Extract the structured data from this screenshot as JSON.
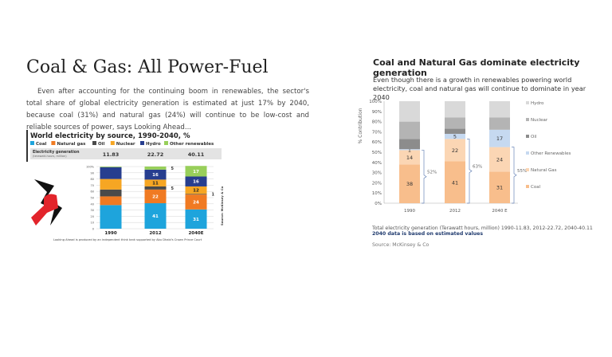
{
  "article": {
    "title": "Coal & Gas: All Power-Fuel",
    "body": "Even after accounting for the continuing boom in renewables, the sector's total share of global electricity generation is estimated at just 17% by 2040, because coal (31%) and natural gas (24%) will continue to be low-cost and reliable sources of power, says Looking Ahead..."
  },
  "chart_data": [
    {
      "type": "bar",
      "stacked": true,
      "title": "World electricity by source, 1990-2040, %",
      "categories": [
        "1990",
        "2012",
        "2040E"
      ],
      "generation_label": "Electricity generation",
      "generation_sublabel": "(terawatt-hours, million)",
      "generation": [
        "11.83",
        "22.72",
        "40.11"
      ],
      "ylim": [
        0,
        100
      ],
      "yticks": [
        "0",
        "10",
        "20",
        "30",
        "40",
        "50",
        "60",
        "70",
        "80",
        "90",
        "100%"
      ],
      "series": [
        {
          "name": "Coal",
          "color": "#1ea4dc",
          "values": [
            38,
            41,
            31
          ],
          "labels": [
            "",
            "41",
            "31"
          ]
        },
        {
          "name": "Natural gas",
          "color": "#f07a22",
          "values": [
            14,
            22,
            24
          ],
          "labels": [
            "",
            "22",
            "24"
          ]
        },
        {
          "name": "Oil",
          "color": "#4a4a4a",
          "values": [
            11,
            5,
            1
          ],
          "labels": [
            "",
            "5",
            "1"
          ]
        },
        {
          "name": "Nuclear",
          "color": "#f6a623",
          "values": [
            17,
            11,
            12
          ],
          "labels": [
            "",
            "11",
            "12"
          ]
        },
        {
          "name": "Hydro",
          "color": "#273e8f",
          "values": [
            19,
            16,
            16
          ],
          "labels": [
            "",
            "16",
            "16"
          ]
        },
        {
          "name": "Other renewables",
          "color": "#98cf5a",
          "values": [
            1,
            5,
            17
          ],
          "labels": [
            "",
            "5",
            "17"
          ]
        }
      ],
      "source": "Source: McKinsey & Co",
      "footnote": "Looking Ahead is produced by an independent think tank supported by Abu Dhabi's Crown Prince Court"
    },
    {
      "type": "bar",
      "stacked": true,
      "title": "Coal and Natural Gas dominate electricity generation",
      "subtitle": "Even though there is a growth in renewables powering world electricity, coal and natural gas will continue to dominate in year 2040",
      "ylabel": "% Contribution",
      "categories": [
        "1990",
        "2012",
        "2040 E"
      ],
      "ylim": [
        0,
        100
      ],
      "yticks": [
        "0%",
        "10%",
        "20%",
        "30%",
        "40%",
        "50%",
        "60%",
        "70%",
        "80%",
        "90%",
        "100%"
      ],
      "series": [
        {
          "name": "Coal",
          "color": "#f8be8c",
          "values": [
            38,
            41,
            31
          ],
          "labels": [
            "38",
            "41",
            "31"
          ]
        },
        {
          "name": "Natural Gas",
          "color": "#fbd6b4",
          "values": [
            14,
            22,
            24
          ],
          "labels": [
            "14",
            "22",
            "24"
          ]
        },
        {
          "name": "Other Renewables",
          "color": "#c6d9f0",
          "values": [
            1,
            5,
            17
          ],
          "labels": [
            "1",
            "5",
            "17"
          ]
        },
        {
          "name": "Oil",
          "color": "#8c8c8c",
          "values": [
            10,
            5,
            0
          ],
          "labels": [
            "",
            "",
            ""
          ]
        },
        {
          "name": "Nuclear",
          "color": "#b4b4b4",
          "values": [
            17,
            11,
            12
          ],
          "labels": [
            "",
            "",
            ""
          ]
        },
        {
          "name": "Hydro",
          "color": "#d9d9d9",
          "values": [
            20,
            16,
            16
          ],
          "labels": [
            "",
            "",
            ""
          ]
        }
      ],
      "brackets": [
        "52%",
        "63%",
        "55%"
      ],
      "note": "Total electricity generation (Terawatt hours, million) 1990-11.83, 2012-22.72, 2040-40.11",
      "note_bold": "2040 data is based on estimated values",
      "source": "Source: McKinsey & Co"
    }
  ]
}
